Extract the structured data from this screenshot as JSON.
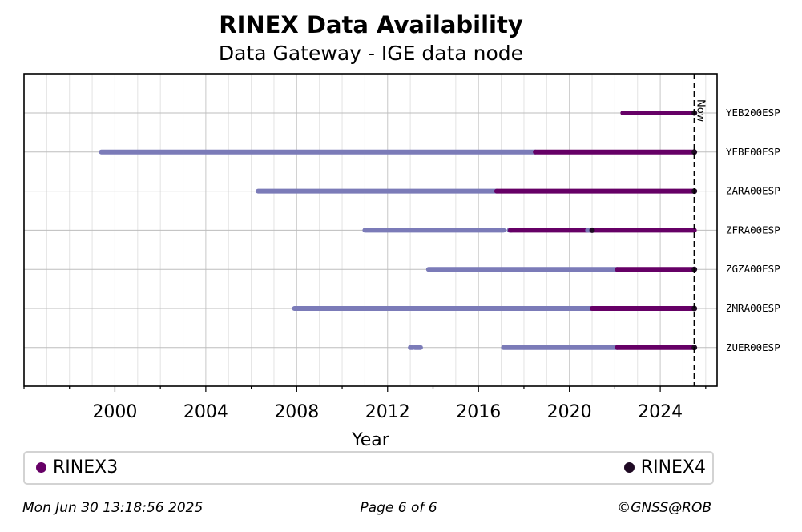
{
  "header": {
    "title": "RINEX Data Availability",
    "subtitle": "Data Gateway - IGE data node"
  },
  "chart_data": {
    "type": "timeline",
    "xlabel": "Year",
    "xlim": [
      1996.0,
      2026.5
    ],
    "x_ticks": [
      2000,
      2004,
      2008,
      2012,
      2016,
      2020,
      2024
    ],
    "now": 2025.5,
    "now_label": "Now",
    "grid": "on",
    "legend_placement": "bottom",
    "colors": {
      "RINEX2": "#7b7bb8",
      "RINEX3": "#660066",
      "RINEX4": "#1f0a24"
    },
    "legend": [
      {
        "label": "RINEX3",
        "color": "#660066"
      },
      {
        "label": "RINEX4",
        "color": "#1f0a24"
      }
    ],
    "stations": [
      {
        "name": "YEB200ESP",
        "segments": [
          {
            "format": "RINEX3",
            "start": 2022.35,
            "end": 2025.5
          }
        ]
      },
      {
        "name": "YEBE00ESP",
        "segments": [
          {
            "format": "RINEX2",
            "start": 1999.4,
            "end": 2018.5
          },
          {
            "format": "RINEX3",
            "start": 2018.5,
            "end": 2025.5
          }
        ]
      },
      {
        "name": "ZARA00ESP",
        "segments": [
          {
            "format": "RINEX2",
            "start": 2006.3,
            "end": 2016.8
          },
          {
            "format": "RINEX3",
            "start": 2016.8,
            "end": 2025.5
          }
        ]
      },
      {
        "name": "ZFRA00ESP",
        "segments": [
          {
            "format": "RINEX2",
            "start": 2011.0,
            "end": 2017.1
          },
          {
            "format": "RINEX2",
            "start": 2017.35,
            "end": 2017.45
          },
          {
            "format": "RINEX3",
            "start": 2017.4,
            "end": 2025.5
          },
          {
            "format": "RINEX2",
            "start": 2020.8,
            "end": 2021.0
          }
        ]
      },
      {
        "name": "ZGZA00ESP",
        "segments": [
          {
            "format": "RINEX2",
            "start": 2013.8,
            "end": 2022.1
          },
          {
            "format": "RINEX3",
            "start": 2022.1,
            "end": 2025.5
          }
        ]
      },
      {
        "name": "ZMRA00ESP",
        "segments": [
          {
            "format": "RINEX2",
            "start": 2007.9,
            "end": 2021.0
          },
          {
            "format": "RINEX3",
            "start": 2021.0,
            "end": 2025.5
          }
        ]
      },
      {
        "name": "ZUER00ESP",
        "segments": [
          {
            "format": "RINEX2",
            "start": 2013.0,
            "end": 2013.1
          },
          {
            "format": "RINEX2",
            "start": 2013.2,
            "end": 2013.45
          },
          {
            "format": "RINEX2",
            "start": 2017.1,
            "end": 2022.1
          },
          {
            "format": "RINEX3",
            "start": 2022.1,
            "end": 2025.5
          }
        ]
      }
    ]
  },
  "footer": {
    "timestamp": "Mon Jun 30 13:18:56 2025",
    "page": "Page 6 of 6",
    "credit": "©GNSS@ROB"
  }
}
